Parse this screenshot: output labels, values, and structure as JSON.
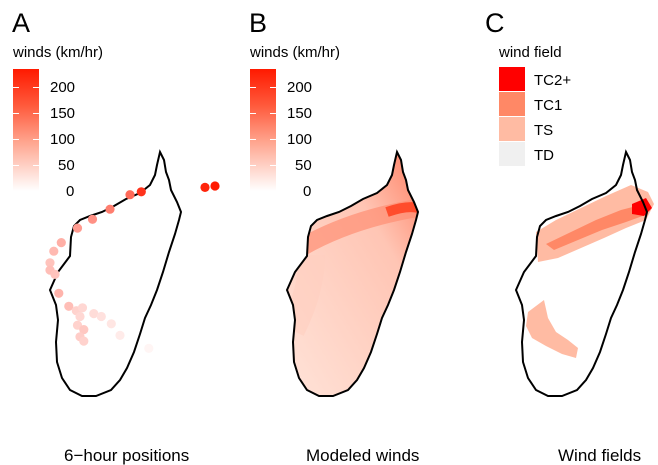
{
  "panels": [
    {
      "letter": "A",
      "legend_title": "winds (km/hr)",
      "legend_ticks": [
        "200",
        "150",
        "100",
        "50",
        "0"
      ],
      "caption": "6−hour positions"
    },
    {
      "letter": "B",
      "legend_title": "winds (km/hr)",
      "legend_ticks": [
        "200",
        "150",
        "100",
        "50",
        "0"
      ],
      "caption": "Modeled winds"
    },
    {
      "letter": "C",
      "legend_title": "wind field",
      "legend_categories": [
        {
          "label": "TC2+",
          "color": "#ff0000"
        },
        {
          "label": "TC1",
          "color": "#ff8866"
        },
        {
          "label": "TS",
          "color": "#ffbba3"
        },
        {
          "label": "TD",
          "color": "#f0f0f0"
        }
      ],
      "caption": "Wind fields"
    }
  ],
  "colors": {
    "max_wind": "#ff1a00",
    "min_wind": "#ffffff",
    "outline": "#000000"
  },
  "track_points": [
    {
      "lon": 56.5,
      "lat": -14.9,
      "wind_kmh": 230
    },
    {
      "lon": 55.7,
      "lat": -15.0,
      "wind_kmh": 220
    },
    {
      "lon": 50.6,
      "lat": -15.3,
      "wind_kmh": 205
    },
    {
      "lon": 49.7,
      "lat": -15.5,
      "wind_kmh": 150
    },
    {
      "lon": 48.1,
      "lat": -16.5,
      "wind_kmh": 130
    },
    {
      "lon": 46.7,
      "lat": -17.2,
      "wind_kmh": 110
    },
    {
      "lon": 45.5,
      "lat": -17.8,
      "wind_kmh": 100
    },
    {
      "lon": 44.2,
      "lat": -18.8,
      "wind_kmh": 80
    },
    {
      "lon": 43.6,
      "lat": -19.4,
      "wind_kmh": 70
    },
    {
      "lon": 43.3,
      "lat": -20.2,
      "wind_kmh": 60
    },
    {
      "lon": 43.3,
      "lat": -20.7,
      "wind_kmh": 65
    },
    {
      "lon": 43.7,
      "lat": -21.0,
      "wind_kmh": 60
    },
    {
      "lon": 44.0,
      "lat": -22.3,
      "wind_kmh": 75
    },
    {
      "lon": 44.8,
      "lat": -23.2,
      "wind_kmh": 65
    },
    {
      "lon": 45.4,
      "lat": -23.5,
      "wind_kmh": 45
    },
    {
      "lon": 45.9,
      "lat": -23.3,
      "wind_kmh": 40
    },
    {
      "lon": 45.7,
      "lat": -23.9,
      "wind_kmh": 40
    },
    {
      "lon": 45.5,
      "lat": -24.5,
      "wind_kmh": 45
    },
    {
      "lon": 46.0,
      "lat": -24.8,
      "wind_kmh": 55
    },
    {
      "lon": 45.7,
      "lat": -25.3,
      "wind_kmh": 50
    },
    {
      "lon": 46.0,
      "lat": -25.6,
      "wind_kmh": 45
    },
    {
      "lon": 46.8,
      "lat": -23.7,
      "wind_kmh": 35
    },
    {
      "lon": 47.4,
      "lat": -23.9,
      "wind_kmh": 30
    },
    {
      "lon": 48.2,
      "lat": -24.4,
      "wind_kmh": 25
    },
    {
      "lon": 48.9,
      "lat": -25.2,
      "wind_kmh": 20
    },
    {
      "lon": 51.2,
      "lat": -26.1,
      "wind_kmh": 10
    }
  ]
}
